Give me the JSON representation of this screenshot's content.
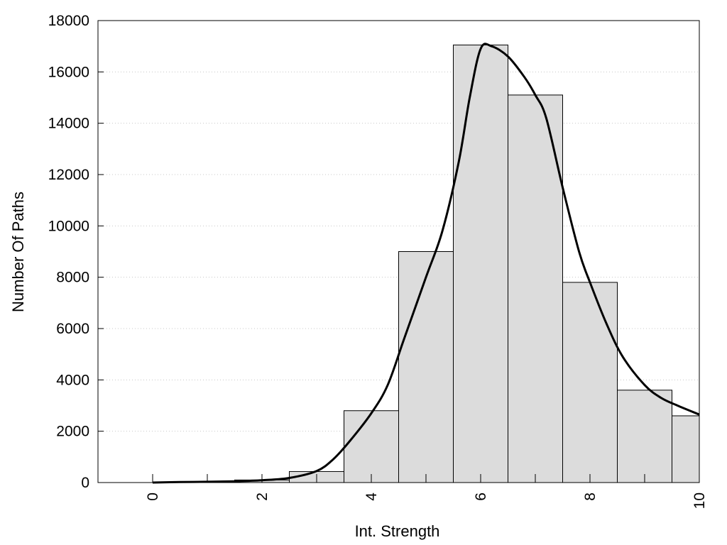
{
  "chart_data": {
    "type": "bar",
    "xlabel": "Int. Strength",
    "ylabel": "Number Of Paths",
    "xlim": [
      -1,
      10
    ],
    "ylim": [
      0,
      18000
    ],
    "x_ticks": [
      0,
      2,
      4,
      6,
      8,
      10
    ],
    "y_ticks": [
      0,
      2000,
      4000,
      6000,
      8000,
      10000,
      12000,
      14000,
      16000,
      18000
    ],
    "grid": "horizontal-dotted",
    "legend": "none",
    "bar_fill": "#dcdcdc",
    "bar_edge": "#000000",
    "curve_color": "#000000",
    "bars": [
      {
        "x": 1,
        "value": 20
      },
      {
        "x": 2,
        "value": 100
      },
      {
        "x": 3,
        "value": 430
      },
      {
        "x": 4,
        "value": 2800
      },
      {
        "x": 5,
        "value": 9000
      },
      {
        "x": 6,
        "value": 17050
      },
      {
        "x": 7,
        "value": 15100
      },
      {
        "x": 8,
        "value": 7800
      },
      {
        "x": 9,
        "value": 3600
      },
      {
        "x": 10,
        "value": 2600
      }
    ],
    "bar_width": 1,
    "density_curve": [
      [
        0,
        0
      ],
      [
        0.5,
        20
      ],
      [
        1,
        30
      ],
      [
        1.5,
        50
      ],
      [
        2,
        90
      ],
      [
        2.5,
        180
      ],
      [
        3,
        450
      ],
      [
        3.3,
        900
      ],
      [
        3.6,
        1600
      ],
      [
        4,
        2700
      ],
      [
        4.3,
        3800
      ],
      [
        4.6,
        5600
      ],
      [
        5,
        8000
      ],
      [
        5.3,
        9800
      ],
      [
        5.6,
        12500
      ],
      [
        5.8,
        15000
      ],
      [
        6,
        16900
      ],
      [
        6.2,
        17000
      ],
      [
        6.5,
        16600
      ],
      [
        6.8,
        15800
      ],
      [
        7,
        15100
      ],
      [
        7.2,
        14200
      ],
      [
        7.5,
        11500
      ],
      [
        7.8,
        9000
      ],
      [
        8,
        7800
      ],
      [
        8.3,
        6200
      ],
      [
        8.6,
        4900
      ],
      [
        9,
        3800
      ],
      [
        9.3,
        3300
      ],
      [
        9.6,
        3000
      ],
      [
        10,
        2650
      ]
    ]
  }
}
